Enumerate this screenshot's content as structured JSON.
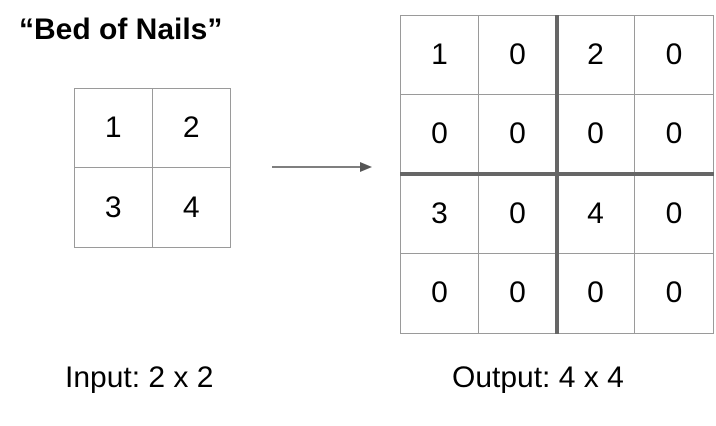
{
  "title": "“Bed of Nails”",
  "input": {
    "caption": "Input: 2 x 2",
    "rows": [
      [
        "1",
        "2"
      ],
      [
        "3",
        "4"
      ]
    ]
  },
  "output": {
    "caption": "Output: 4 x 4",
    "rows": [
      [
        "1",
        "0",
        "2",
        "0"
      ],
      [
        "0",
        "0",
        "0",
        "0"
      ],
      [
        "3",
        "0",
        "4",
        "0"
      ],
      [
        "0",
        "0",
        "0",
        "0"
      ]
    ]
  },
  "colors": {
    "grid_line": "#9a9a9a",
    "divider": "#666666",
    "arrow": "#555555"
  }
}
